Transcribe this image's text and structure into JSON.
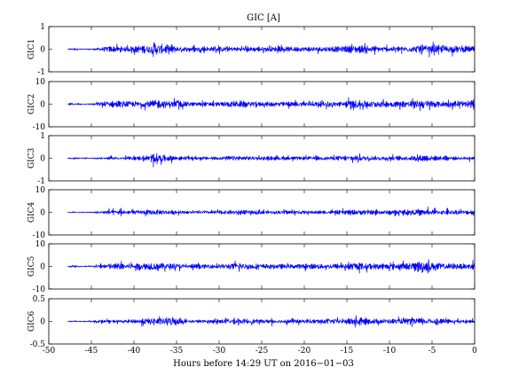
{
  "chart_data": {
    "type": "line",
    "title": "GIC [A]",
    "xlabel": "Hours before  14:29 UT on 2016−01−03",
    "xlim": [
      -50,
      0
    ],
    "xticks": [
      -50,
      -45,
      -40,
      -35,
      -30,
      -25,
      -20,
      -15,
      -10,
      -5,
      0
    ],
    "x_data_start": -47.8,
    "series_color": "#0000ff",
    "grid": false,
    "panels": [
      {
        "name": "GIC1",
        "ylim": [
          -1,
          1
        ],
        "yticks": [
          -1,
          0,
          1
        ],
        "envelope": [
          [
            -47.8,
            0.0
          ],
          [
            -47.5,
            0.15
          ],
          [
            -46,
            0.06
          ],
          [
            -45,
            0.08
          ],
          [
            -44,
            0.18
          ],
          [
            -43,
            0.35
          ],
          [
            -42,
            0.3
          ],
          [
            -41,
            0.3
          ],
          [
            -40,
            0.35
          ],
          [
            -39,
            0.45
          ],
          [
            -38,
            0.5
          ],
          [
            -37.5,
            0.75
          ],
          [
            -37,
            0.65
          ],
          [
            -36.5,
            0.45
          ],
          [
            -35.5,
            0.6
          ],
          [
            -35,
            0.3
          ],
          [
            -33,
            0.25
          ],
          [
            -30,
            0.3
          ],
          [
            -28,
            0.25
          ],
          [
            -25,
            0.3
          ],
          [
            -22,
            0.28
          ],
          [
            -20,
            0.3
          ],
          [
            -16,
            0.3
          ],
          [
            -14,
            0.45
          ],
          [
            -12,
            0.35
          ],
          [
            -10,
            0.3
          ],
          [
            -7,
            0.35
          ],
          [
            -6.5,
            0.6
          ],
          [
            -5.5,
            0.45
          ],
          [
            -3,
            0.4
          ],
          [
            0,
            0.35
          ]
        ]
      },
      {
        "name": "GIC2",
        "ylim": [
          -10,
          10
        ],
        "yticks": [
          -10,
          0,
          10
        ],
        "envelope": [
          [
            -47.8,
            0.0
          ],
          [
            -47.5,
            1.5
          ],
          [
            -46,
            0.6
          ],
          [
            -45,
            0.8
          ],
          [
            -44,
            2.5
          ],
          [
            -43,
            3.5
          ],
          [
            -41,
            3.5
          ],
          [
            -39,
            3.5
          ],
          [
            -38,
            4.5
          ],
          [
            -37.5,
            5.5
          ],
          [
            -37,
            4.5
          ],
          [
            -35.5,
            4
          ],
          [
            -33,
            2.5
          ],
          [
            -30,
            2.5
          ],
          [
            -28,
            4
          ],
          [
            -26,
            3
          ],
          [
            -25,
            2.5
          ],
          [
            -20,
            3
          ],
          [
            -16,
            3
          ],
          [
            -14,
            5
          ],
          [
            -12,
            4
          ],
          [
            -9,
            3.5
          ],
          [
            -7,
            4.5
          ],
          [
            -6,
            5
          ],
          [
            -4,
            3.5
          ],
          [
            -1,
            3
          ],
          [
            0,
            6
          ]
        ]
      },
      {
        "name": "GIC3",
        "ylim": [
          -1,
          1
        ],
        "yticks": [
          -1,
          0,
          1
        ],
        "envelope": [
          [
            -47.8,
            0.0
          ],
          [
            -47.5,
            0.1
          ],
          [
            -46,
            0.05
          ],
          [
            -45,
            0.06
          ],
          [
            -44,
            0.1
          ],
          [
            -43,
            0.15
          ],
          [
            -41,
            0.15
          ],
          [
            -39,
            0.25
          ],
          [
            -38,
            0.4
          ],
          [
            -37.5,
            0.65
          ],
          [
            -37,
            0.45
          ],
          [
            -36,
            0.35
          ],
          [
            -34,
            0.15
          ],
          [
            -30,
            0.2
          ],
          [
            -28,
            0.3
          ],
          [
            -25,
            0.2
          ],
          [
            -22,
            0.2
          ],
          [
            -20,
            0.2
          ],
          [
            -17,
            0.22
          ],
          [
            -14,
            0.35
          ],
          [
            -12,
            0.25
          ],
          [
            -9,
            0.25
          ],
          [
            -7,
            0.3
          ],
          [
            -6,
            0.4
          ],
          [
            -5,
            0.3
          ],
          [
            -2,
            0.2
          ],
          [
            0,
            0.2
          ]
        ]
      },
      {
        "name": "GIC4",
        "ylim": [
          -10,
          10
        ],
        "yticks": [
          -10,
          0,
          10
        ],
        "envelope": [
          [
            -47.8,
            0.0
          ],
          [
            -47.5,
            0.8
          ],
          [
            -46,
            0.5
          ],
          [
            -45,
            0.6
          ],
          [
            -44,
            1.5
          ],
          [
            -43,
            2.5
          ],
          [
            -41,
            2.5
          ],
          [
            -39,
            2.5
          ],
          [
            -38,
            3
          ],
          [
            -36,
            2.5
          ],
          [
            -34,
            1.5
          ],
          [
            -30,
            2
          ],
          [
            -28,
            2.5
          ],
          [
            -25,
            2
          ],
          [
            -22,
            2
          ],
          [
            -20,
            2
          ],
          [
            -16,
            2
          ],
          [
            -14,
            3
          ],
          [
            -12,
            2.5
          ],
          [
            -9,
            2.5
          ],
          [
            -7,
            3
          ],
          [
            -6,
            3.5
          ],
          [
            -4,
            2.5
          ],
          [
            -1,
            2.5
          ],
          [
            0,
            3
          ]
        ]
      },
      {
        "name": "GIC5",
        "ylim": [
          -10,
          10
        ],
        "yticks": [
          -10,
          0,
          10
        ],
        "envelope": [
          [
            -47.8,
            0.0
          ],
          [
            -47.5,
            1
          ],
          [
            -46,
            0.6
          ],
          [
            -45,
            0.8
          ],
          [
            -44,
            2
          ],
          [
            -43,
            3.5
          ],
          [
            -41,
            3.5
          ],
          [
            -39,
            4
          ],
          [
            -38,
            5
          ],
          [
            -37,
            4
          ],
          [
            -35.5,
            3.5
          ],
          [
            -34,
            2.5
          ],
          [
            -30,
            2.5
          ],
          [
            -28,
            4
          ],
          [
            -25,
            3
          ],
          [
            -22,
            2.5
          ],
          [
            -20,
            3
          ],
          [
            -16,
            3
          ],
          [
            -14,
            4
          ],
          [
            -12,
            3.5
          ],
          [
            -9,
            3.5
          ],
          [
            -7,
            4
          ],
          [
            -6.3,
            9
          ],
          [
            -5.5,
            5
          ],
          [
            -3,
            3.5
          ],
          [
            -1,
            3
          ],
          [
            0,
            5
          ]
        ]
      },
      {
        "name": "GIC6",
        "ylim": [
          -0.5,
          0.5
        ],
        "yticks": [
          -0.5,
          0,
          0.5
        ],
        "envelope": [
          [
            -47.8,
            0.0
          ],
          [
            -47.5,
            0.05
          ],
          [
            -46,
            0.03
          ],
          [
            -45,
            0.04
          ],
          [
            -44,
            0.07
          ],
          [
            -43,
            0.08
          ],
          [
            -41,
            0.08
          ],
          [
            -39,
            0.15
          ],
          [
            -38,
            0.2
          ],
          [
            -37.5,
            0.25
          ],
          [
            -37,
            0.18
          ],
          [
            -35.5,
            0.3
          ],
          [
            -34,
            0.08
          ],
          [
            -30,
            0.1
          ],
          [
            -28,
            0.15
          ],
          [
            -25,
            0.12
          ],
          [
            -22,
            0.12
          ],
          [
            -20,
            0.12
          ],
          [
            -16,
            0.15
          ],
          [
            -14,
            0.2
          ],
          [
            -12,
            0.15
          ],
          [
            -9,
            0.15
          ],
          [
            -7,
            0.2
          ],
          [
            -6,
            0.2
          ],
          [
            -4,
            0.12
          ],
          [
            -1,
            0.08
          ],
          [
            0,
            0.1
          ]
        ]
      }
    ]
  }
}
